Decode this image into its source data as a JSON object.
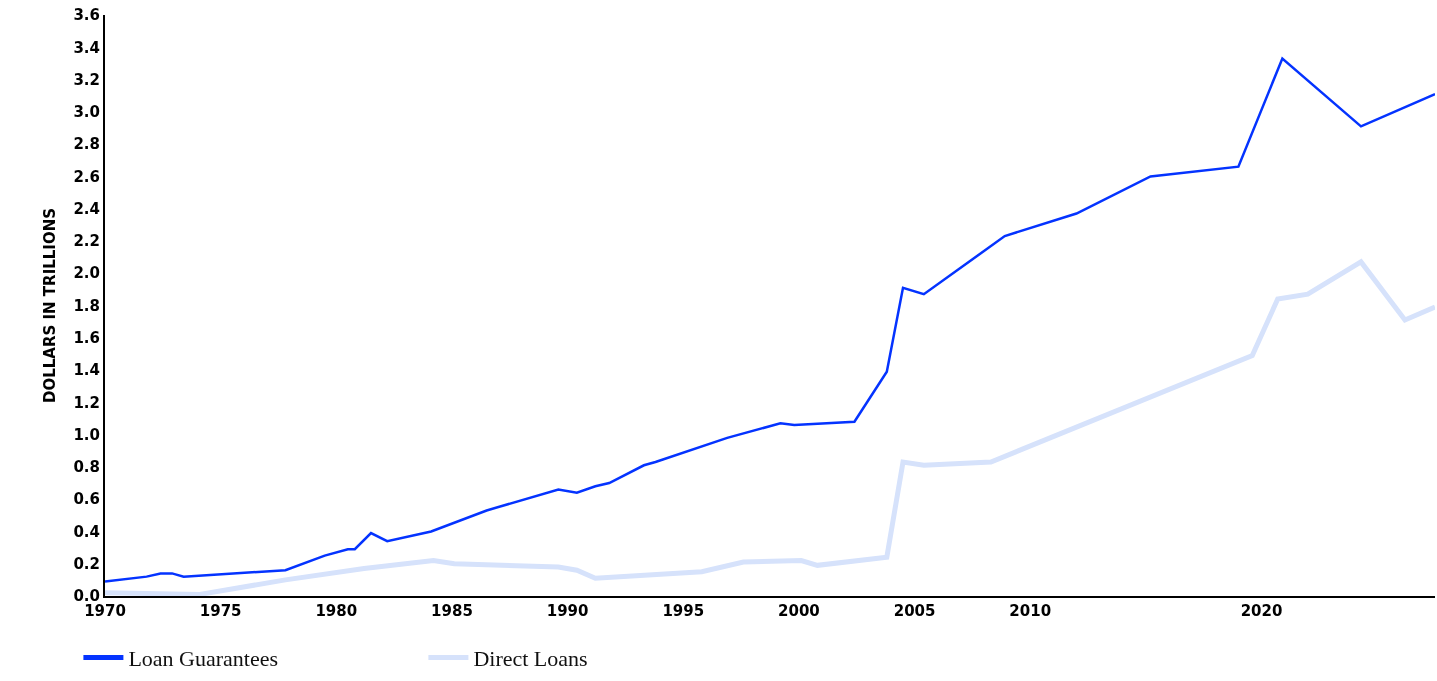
{
  "chart_data": {
    "type": "line",
    "ylabel": "DOLLARS IN TRILLIONS",
    "xlim": [
      1970,
      2027.5
    ],
    "xticks": [
      1970,
      1975,
      1980,
      1985,
      1990,
      1995,
      2000,
      2005,
      2010,
      2020
    ],
    "ylim": [
      0,
      3.6
    ],
    "yticks": [
      {
        "value": 0,
        "label": "0.0"
      },
      0.2,
      0.4,
      0.6,
      0.8,
      {
        "value": 1,
        "label": "1.0"
      },
      1.2,
      1.4,
      1.6,
      1.8,
      {
        "value": 2,
        "label": "2.0"
      },
      2.2,
      2.4,
      2.6,
      2.8,
      {
        "value": 3,
        "label": "3.0"
      },
      3.2,
      3.4,
      3.6
    ],
    "legend": "bottom left",
    "marker": "none",
    "line_style": "solid",
    "series": [
      {
        "name": "Loan Guarantees",
        "color": "#0433ff",
        "x": [
          1970,
          1971.8,
          1972.4,
          1972.9,
          1973.4,
          1977.8,
          1979.5,
          1980.5,
          1980.8,
          1981.5,
          1982.2,
          1984.1,
          1986.5,
          1989.6,
          1990.4,
          1991.2,
          1991.8,
          1993.3,
          1993.8,
          1996.9,
          1999.2,
          1999.8,
          2002.4,
          2003.8,
          2004.5,
          2005.4,
          2008.9,
          2012.0,
          2015.2,
          2019.0,
          2020.9,
          2024.3,
          2027.5
        ],
        "values": [
          0.09,
          0.12,
          0.14,
          0.14,
          0.12,
          0.16,
          0.25,
          0.29,
          0.29,
          0.39,
          0.34,
          0.4,
          0.53,
          0.66,
          0.64,
          0.68,
          0.7,
          0.81,
          0.83,
          0.98,
          1.07,
          1.06,
          1.08,
          1.39,
          1.91,
          1.87,
          2.23,
          2.37,
          2.6,
          2.66,
          3.33,
          2.91,
          3.11
        ]
      },
      {
        "name": "Direct Loans",
        "color": "#d6e2fb",
        "x": [
          1970,
          1974.1,
          1977.8,
          1981.2,
          1984.2,
          1985.1,
          1989.6,
          1990.4,
          1991.2,
          1995.8,
          1997.6,
          2000.1,
          2000.8,
          2003.8,
          2004.5,
          2005.4,
          2008.3,
          2019.6,
          2020.7,
          2022.0,
          2024.3,
          2026.2,
          2027.5
        ],
        "values": [
          0.02,
          0.01,
          0.1,
          0.17,
          0.22,
          0.2,
          0.18,
          0.16,
          0.11,
          0.15,
          0.21,
          0.22,
          0.19,
          0.24,
          0.83,
          0.81,
          0.83,
          1.49,
          1.84,
          1.87,
          2.07,
          1.71,
          1.79
        ]
      }
    ]
  }
}
